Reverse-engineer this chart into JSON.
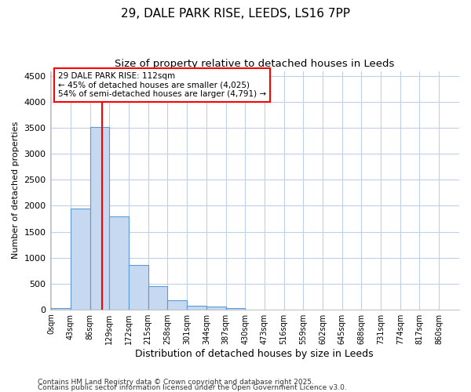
{
  "title_line1": "29, DALE PARK RISE, LEEDS, LS16 7PP",
  "title_line2": "Size of property relative to detached houses in Leeds",
  "xlabel": "Distribution of detached houses by size in Leeds",
  "ylabel": "Number of detached properties",
  "bin_edges": [
    0,
    43,
    86,
    129,
    172,
    215,
    258,
    301,
    344,
    387,
    430,
    473,
    516,
    559,
    602,
    645,
    688,
    731,
    774,
    817,
    860
  ],
  "bar_heights": [
    30,
    1950,
    3520,
    1800,
    860,
    450,
    175,
    75,
    50,
    30,
    0,
    0,
    0,
    0,
    0,
    0,
    0,
    0,
    0,
    0
  ],
  "bar_color": "#c6d9f1",
  "bar_edgecolor": "#5b9bd5",
  "property_size": 112,
  "vline_color": "red",
  "ylim": [
    0,
    4600
  ],
  "yticks": [
    0,
    500,
    1000,
    1500,
    2000,
    2500,
    3000,
    3500,
    4000,
    4500
  ],
  "annotation_text": "29 DALE PARK RISE: 112sqm\n← 45% of detached houses are smaller (4,025)\n54% of semi-detached houses are larger (4,791) →",
  "annotation_box_facecolor": "white",
  "annotation_box_edgecolor": "red",
  "footnote_line1": "Contains HM Land Registry data © Crown copyright and database right 2025.",
  "footnote_line2": "Contains public sector information licensed under the Open Government Licence v3.0.",
  "fig_facecolor": "white",
  "ax_facecolor": "white",
  "grid_color": "#c0d0e8",
  "title_fontsize": 11,
  "subtitle_fontsize": 9.5
}
